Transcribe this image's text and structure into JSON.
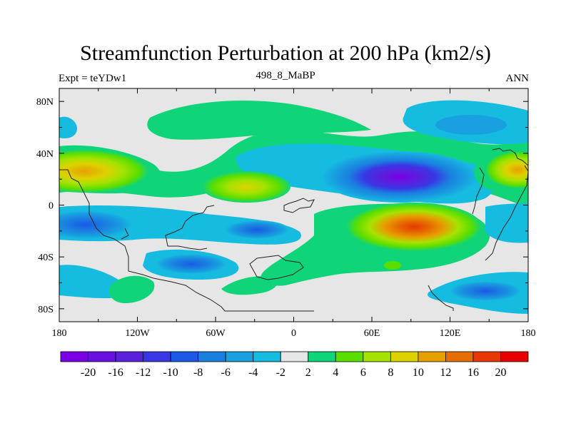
{
  "title": "Streamfunction Perturbation at 200 hPa (km2/s)",
  "subtitle_left": "Expt = teYDw1",
  "subtitle_center": "498_8_MaBP",
  "subtitle_right": "ANN",
  "chart_data": {
    "type": "heatmap",
    "variable": "Streamfunction Perturbation",
    "level": "200 hPa",
    "units": "km2/s",
    "x_range": [
      -180,
      180
    ],
    "y_range": [
      -90,
      90
    ],
    "x_ticks": [
      {
        "value": -180,
        "label": "180"
      },
      {
        "value": -120,
        "label": "120W"
      },
      {
        "value": -60,
        "label": "60W"
      },
      {
        "value": 0,
        "label": "0"
      },
      {
        "value": 60,
        "label": "60E"
      },
      {
        "value": 120,
        "label": "120E"
      },
      {
        "value": 180,
        "label": "180"
      }
    ],
    "y_ticks": [
      {
        "value": 80,
        "label": "80N"
      },
      {
        "value": 40,
        "label": "40N"
      },
      {
        "value": 0,
        "label": "0"
      },
      {
        "value": -40,
        "label": "40S"
      },
      {
        "value": -80,
        "label": "80S"
      }
    ],
    "contour_levels": [
      "-20",
      "-16",
      "-12",
      "-10",
      "-8",
      "-6",
      "-4",
      "-2",
      "2",
      "4",
      "6",
      "8",
      "10",
      "12",
      "16",
      "20"
    ],
    "colorbar_colors": [
      "#7a00e6",
      "#6a10e0",
      "#5a20dc",
      "#3a36e6",
      "#1a5ae6",
      "#1a80e0",
      "#18a0e0",
      "#16bce0",
      "#e6e6e6",
      "#10d478",
      "#5ade00",
      "#a6e200",
      "#dcd200",
      "#e6a000",
      "#e66e00",
      "#e63800",
      "#e60000"
    ],
    "features": [
      {
        "lon": 90,
        "lat": 20,
        "value": -20,
        "description": "strong negative center over Asia"
      },
      {
        "lon": 90,
        "lat": -16,
        "value": 16,
        "description": "strong positive center over Indian Ocean"
      },
      {
        "lon": -150,
        "lat": 24,
        "value": 12,
        "description": "positive center, North Pacific"
      },
      {
        "lon": 170,
        "lat": 24,
        "value": 10,
        "description": "positive center, West Pacific"
      },
      {
        "lon": -30,
        "lat": 12,
        "value": 8,
        "description": "positive center, Atlantic"
      },
      {
        "lon": -160,
        "lat": -16,
        "value": -8,
        "description": "negative center, South Pacific"
      },
      {
        "lon": -30,
        "lat": -18,
        "value": -8,
        "description": "negative center, South Atlantic"
      },
      {
        "lon": -100,
        "lat": -44,
        "value": -8,
        "description": "negative center, South Pacific midlatitudes"
      },
      {
        "lon": 90,
        "lat": 66,
        "value": -6,
        "description": "negative center, Arctic Asia"
      },
      {
        "lon": 155,
        "lat": -66,
        "value": -6,
        "description": "negative center, Southern Ocean"
      }
    ]
  }
}
